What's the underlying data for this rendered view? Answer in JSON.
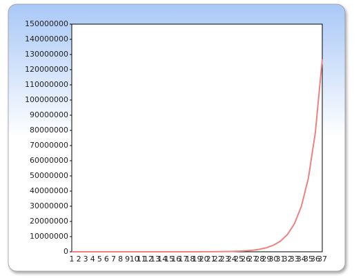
{
  "chart_data": {
    "type": "line",
    "categories": [
      "1",
      "2",
      "3",
      "4",
      "5",
      "6",
      "7",
      "8",
      "9",
      "10",
      "11",
      "12",
      "13",
      "14",
      "15",
      "16",
      "17",
      "18",
      "19",
      "20",
      "21",
      "22",
      "23",
      "24",
      "25",
      "26",
      "27",
      "28",
      "29",
      "30",
      "31",
      "32",
      "33",
      "34",
      "35",
      "36",
      "37"
    ],
    "series": [
      {
        "color": "#f08080",
        "values": [
          4,
          6,
          10,
          16,
          26,
          42,
          68,
          110,
          180,
          290,
          460,
          750,
          1200,
          2000,
          3200,
          5100,
          8300,
          13500,
          22000,
          35000,
          57000,
          93000,
          150000,
          244000,
          394000,
          640000,
          1030000,
          1670000,
          2700000,
          4370000,
          7080000,
          11450000,
          18500000,
          30000000,
          48500000,
          78500000,
          127000000
        ]
      }
    ],
    "ylim": [
      0,
      150000000
    ],
    "yticks": [
      0,
      10000000,
      20000000,
      30000000,
      40000000,
      50000000,
      60000000,
      70000000,
      80000000,
      90000000,
      100000000,
      110000000,
      120000000,
      130000000,
      140000000,
      150000000
    ],
    "grid": false
  }
}
